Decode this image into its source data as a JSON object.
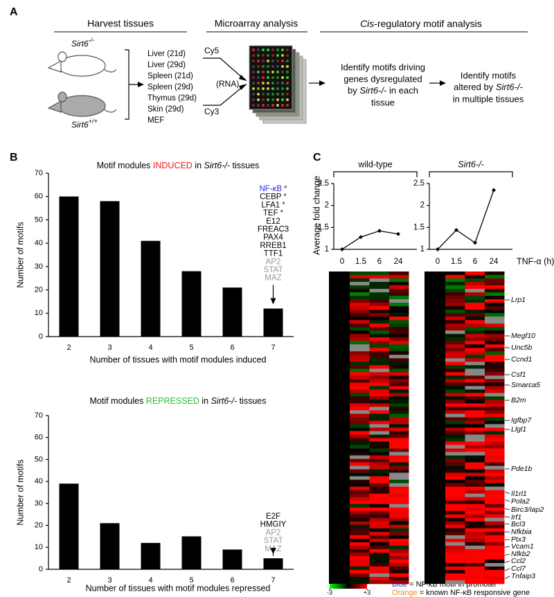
{
  "panel_a": {
    "label": "A",
    "header_harvest": "Harvest tissues",
    "header_microarray": "Microarray analysis",
    "header_motif_italic": "Cis",
    "header_motif_rest": "-regulatory motif analysis",
    "mouse_ko": {
      "name": "Sirt6",
      "genotype": "-/-"
    },
    "mouse_wt": {
      "name": "Sirt6",
      "genotype": "+/+"
    },
    "tissues": [
      "Liver (21d)",
      "Liver (29d)",
      "Spleen (21d)",
      "Spleen (29d)",
      "Thymus (29d)",
      "Skin (29d)",
      "MEF"
    ],
    "dye_top": "Cy5",
    "dye_middle": "(RNA)",
    "dye_bottom": "Cy3",
    "step_1": {
      "line_1": "Identify motifs driving",
      "line_2": "genes dysregulated",
      "line_3_a": "by ",
      "line_3_b": "Sirt6-/-",
      "line_3_c": " in each",
      "line_4": "tissue"
    },
    "step_2": {
      "line_1": "Identify motifs",
      "line_2_a": "altered by ",
      "line_2_b": "Sirt6-/-",
      "line_3": "in multiple tissues"
    }
  },
  "panel_b_label": "B",
  "panel_c": {
    "label": "C",
    "genes": [
      {
        "name": "Lrp1",
        "color": "#2b35d6"
      },
      {
        "name": "Megf10",
        "color": "#2b35d6"
      },
      {
        "name": "Unc5b",
        "color": "#2b35d6"
      },
      {
        "name": "Ccnd1",
        "color": "#2b35d6"
      },
      {
        "name": "Csf1",
        "color": "#e88a2a"
      },
      {
        "name": "Smarca5",
        "color": "#2b35d6"
      },
      {
        "name": "B2m",
        "color": "#2b35d6"
      },
      {
        "name": "Igfbp7",
        "color": "#2b35d6"
      },
      {
        "name": "Llgl1",
        "color": "#2b35d6"
      },
      {
        "name": "Pde1b",
        "color": "#2b35d6"
      },
      {
        "name": "Il1rl1",
        "color": "#2b35d6"
      },
      {
        "name": "Pola2",
        "color": "#2b35d6"
      },
      {
        "name": "Birc3/Iap2",
        "color": "#e88a2a"
      },
      {
        "name": "Irf1",
        "color": "#2b35d6"
      },
      {
        "name": "Bcl3",
        "color": "#e88a2a"
      },
      {
        "name": "Nfkbia",
        "color": "#2b35d6"
      },
      {
        "name": "Ptx3",
        "color": "#e88a2a"
      },
      {
        "name": "Vcam1",
        "color": "#e88a2a"
      },
      {
        "name": "Nfkb2",
        "color": "#2b35d6"
      },
      {
        "name": "Ccl2",
        "color": "#2b35d6"
      },
      {
        "name": "Ccl7",
        "color": "#e88a2a"
      },
      {
        "name": "Tnfaip3",
        "color": "#e88a2a"
      }
    ],
    "colorbar_lim": [
      -3,
      3
    ],
    "colorbar_ticks": [
      -3,
      {
        "value": 3,
        "label": "+3"
      }
    ],
    "legend_blue_word": "Blue",
    "legend_blue_rest": " = NF-κB motif in promoter",
    "legend_blue_color": "#2b35d6",
    "legend_orange_word": "Orange",
    "legend_orange_rest": " = known NF-κB responsive gene",
    "legend_orange_color": "#e88a2a"
  },
  "chart_data": [
    {
      "type": "bar",
      "title": [
        "Motif modules ",
        "INDUCED",
        " in ",
        "Sirt6-/-",
        " tissues"
      ],
      "highlight_color": "#e8201e",
      "categories": [
        "2",
        "3",
        "4",
        "5",
        "6",
        "7"
      ],
      "values": [
        60,
        58,
        41,
        28,
        21,
        12
      ],
      "color": "#000000",
      "ylim": [
        0,
        70
      ],
      "yticks": [
        0,
        10,
        20,
        30,
        40,
        50,
        60,
        70
      ],
      "grid": false,
      "xlabel": "Number of tissues with motif modules induced",
      "ylabel": "Number of motifs",
      "annotations": [
        {
          "text": "NF-κB",
          "mark": "*",
          "color": "#2b2bd1"
        },
        {
          "text": "CEBP",
          "mark": "*",
          "color": "#000000"
        },
        {
          "text": "LFA1",
          "mark": "*",
          "color": "#000000"
        },
        {
          "text": "TEF",
          "mark": "*",
          "color": "#000000"
        },
        {
          "text": "E12",
          "color": "#000000"
        },
        {
          "text": "FREAC3",
          "color": "#000000"
        },
        {
          "text": "PAX4",
          "color": "#000000"
        },
        {
          "text": "RREB1",
          "color": "#000000"
        },
        {
          "text": "TTF1",
          "color": "#000000"
        },
        {
          "text": "AP2",
          "color": "#999999"
        },
        {
          "text": "STAT",
          "color": "#999999"
        },
        {
          "text": "MAZ",
          "color": "#999999"
        }
      ]
    },
    {
      "type": "bar",
      "title": [
        "Motif modules ",
        "REPRESSED",
        " in ",
        "Sirt6-/-",
        " tissues"
      ],
      "highlight_color": "#2ebd3a",
      "categories": [
        "2",
        "3",
        "4",
        "5",
        "6",
        "7"
      ],
      "values": [
        39,
        21,
        12,
        15,
        9,
        5
      ],
      "color": "#000000",
      "ylim": [
        0,
        70
      ],
      "yticks": [
        0,
        10,
        20,
        30,
        40,
        50,
        60,
        70
      ],
      "grid": false,
      "xlabel": "Number of tissues with motif modules repressed",
      "ylabel": "Number of motifs",
      "annotations": [
        {
          "text": "E2F",
          "color": "#000000"
        },
        {
          "text": "HMGIY",
          "color": "#000000"
        },
        {
          "text": "AP2",
          "color": "#999999"
        },
        {
          "text": "STAT",
          "color": "#999999"
        },
        {
          "text": "MAZ",
          "color": "#999999"
        }
      ]
    },
    {
      "type": "line",
      "header": "wild-type",
      "categories": [
        "0",
        "1.5",
        "6",
        "24"
      ],
      "values": [
        1,
        1.28,
        1.42,
        1.35
      ],
      "color": "#000000",
      "ylim": [
        1,
        2.5
      ],
      "yticks": [
        1,
        1.5,
        2,
        2.5
      ],
      "grid": false,
      "ylabel": "Average fold change"
    },
    {
      "type": "line",
      "header": "Sirt6-/-",
      "categories": [
        "0",
        "1.5",
        "6",
        "24"
      ],
      "values": [
        1,
        1.44,
        1.15,
        2.35
      ],
      "color": "#000000",
      "ylim": [
        1,
        2.5
      ],
      "yticks": [
        1,
        1.5,
        2,
        2.5
      ],
      "grid": false,
      "xlabel": "TNF-α (h)"
    }
  ]
}
